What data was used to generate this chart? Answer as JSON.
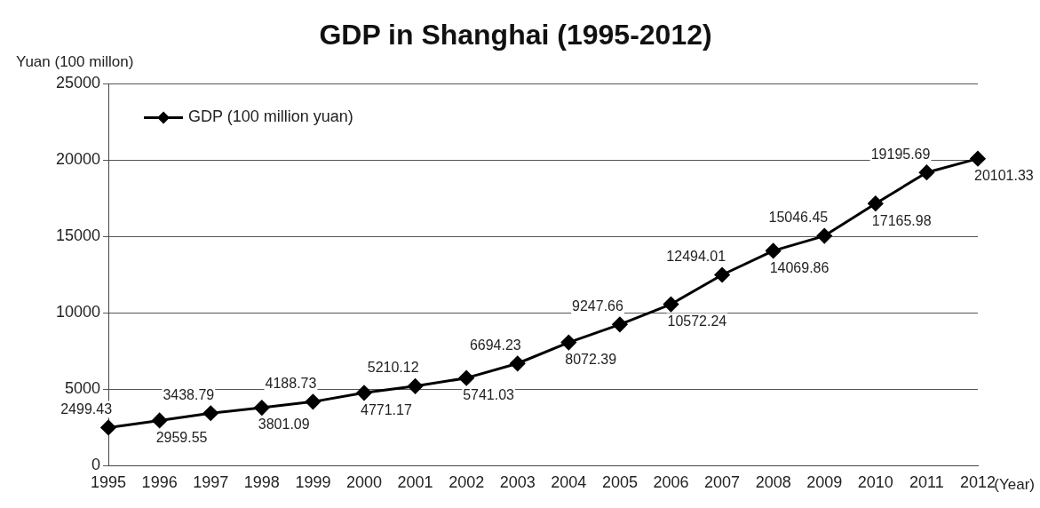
{
  "chart_data": {
    "type": "line",
    "title": "GDP in Shanghai (1995-2012)",
    "ylabel": "Yuan (100 millon)",
    "xlabel": "(Year)",
    "categories": [
      "1995",
      "1996",
      "1997",
      "1998",
      "1999",
      "2000",
      "2001",
      "2002",
      "2003",
      "2004",
      "2005",
      "2006",
      "2007",
      "2008",
      "2009",
      "2010",
      "2011",
      "2012"
    ],
    "series": [
      {
        "name": "GDP (100 million yuan)",
        "color": "#000000",
        "values": [
          2499.43,
          2959.55,
          3438.79,
          3801.09,
          4188.73,
          4771.17,
          5210.12,
          5741.03,
          6694.23,
          8072.39,
          9247.66,
          10572.24,
          12494.01,
          14069.86,
          15046.45,
          17165.98,
          19195.69,
          20101.33
        ]
      }
    ],
    "ylim": [
      0,
      25000
    ],
    "yticks": [
      0,
      5000,
      10000,
      15000,
      20000,
      25000
    ],
    "grid": "y",
    "legend": "top left",
    "marker": "diamond",
    "line_style": "solid",
    "data_labels": true
  }
}
